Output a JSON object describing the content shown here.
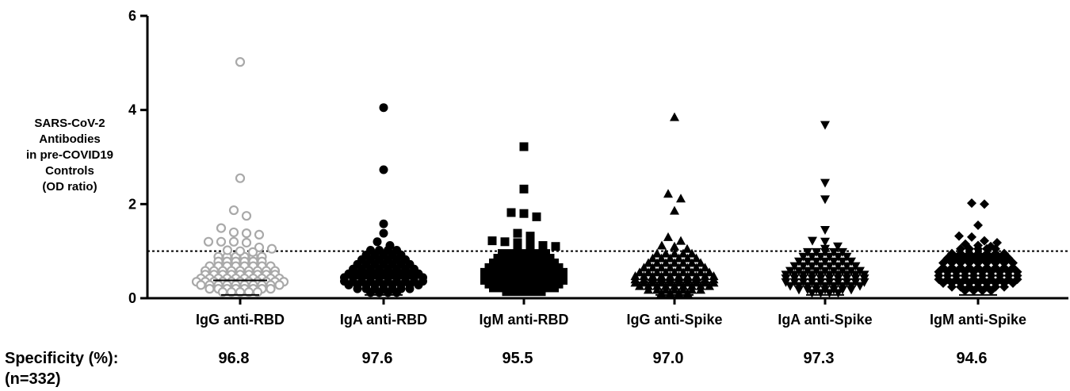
{
  "chart_data": {
    "type": "scatter",
    "ylabel_lines": [
      "SARS-CoV-2",
      "Antibodies",
      "in pre-COVID19",
      "Controls",
      "(OD ratio)"
    ],
    "ylim": [
      0,
      6
    ],
    "yticks": [
      "0",
      "2",
      "4",
      "6"
    ],
    "cutoff": 1,
    "categories": [
      "IgG anti-RBD",
      "IgA anti-RBD",
      "IgM anti-RBD",
      "IgG anti-Spike",
      "IgA anti-Spike",
      "IgM anti-Spike"
    ],
    "specificity_label": "Specificity (%):",
    "n_label": "(n=332)",
    "specificity_values": [
      "96.8",
      "97.6",
      "95.5",
      "97.0",
      "97.3",
      "94.6"
    ],
    "series": [
      {
        "marker": "circle-open",
        "color": "#a9a9a9",
        "median": 0.38,
        "outliers": [
          5.02,
          2.55,
          1.87,
          1.75,
          1.49,
          1.4,
          1.38,
          1.35,
          1.2,
          1.2,
          1.18,
          1.2,
          1.08,
          1.05,
          1.02,
          1.0,
          0.98
        ],
        "bands": [
          [
            0.88,
            28
          ],
          [
            0.78,
            32
          ],
          [
            0.68,
            40
          ],
          [
            0.58,
            44
          ],
          [
            0.5,
            48
          ],
          [
            0.42,
            52
          ],
          [
            0.35,
            56
          ],
          [
            0.28,
            52
          ],
          [
            0.2,
            42
          ],
          [
            0.13,
            22
          ]
        ]
      },
      {
        "marker": "circle",
        "color": "#000000",
        "median": 0.42,
        "outliers": [
          4.05,
          2.73,
          1.58,
          1.38,
          1.2,
          1.12
        ],
        "bands": [
          [
            1.02,
            18
          ],
          [
            0.92,
            24
          ],
          [
            0.82,
            30
          ],
          [
            0.72,
            36
          ],
          [
            0.62,
            42
          ],
          [
            0.52,
            46
          ],
          [
            0.44,
            50
          ],
          [
            0.36,
            52
          ],
          [
            0.28,
            46
          ],
          [
            0.2,
            36
          ],
          [
            0.12,
            20
          ]
        ]
      },
      {
        "marker": "square",
        "color": "#000000",
        "median": 0.45,
        "outliers": [
          3.22,
          2.32,
          1.82,
          1.8,
          1.73,
          1.38,
          1.32,
          1.22,
          1.2,
          1.18,
          1.15,
          1.12,
          1.1,
          1.05,
          1.05
        ],
        "bands": [
          [
            0.95,
            28
          ],
          [
            0.85,
            34
          ],
          [
            0.75,
            40
          ],
          [
            0.65,
            46
          ],
          [
            0.55,
            50
          ],
          [
            0.47,
            52
          ],
          [
            0.38,
            52
          ],
          [
            0.3,
            48
          ],
          [
            0.22,
            40
          ],
          [
            0.14,
            24
          ]
        ]
      },
      {
        "marker": "triangle-up",
        "color": "#000000",
        "median": 0.38,
        "outliers": [
          3.85,
          2.22,
          2.12,
          1.86,
          1.3,
          1.22,
          1.12,
          1.1,
          1.05
        ],
        "bands": [
          [
            0.95,
            24
          ],
          [
            0.85,
            30
          ],
          [
            0.75,
            36
          ],
          [
            0.65,
            42
          ],
          [
            0.55,
            46
          ],
          [
            0.47,
            50
          ],
          [
            0.4,
            52
          ],
          [
            0.33,
            52
          ],
          [
            0.26,
            46
          ],
          [
            0.18,
            36
          ],
          [
            0.11,
            20
          ]
        ]
      },
      {
        "marker": "triangle-down",
        "color": "#000000",
        "median": 0.4,
        "outliers": [
          3.68,
          2.45,
          2.1,
          1.45,
          1.22,
          1.2,
          1.1,
          1.05
        ],
        "bands": [
          [
            0.98,
            22
          ],
          [
            0.88,
            28
          ],
          [
            0.78,
            34
          ],
          [
            0.68,
            40
          ],
          [
            0.58,
            46
          ],
          [
            0.5,
            50
          ],
          [
            0.42,
            52
          ],
          [
            0.34,
            50
          ],
          [
            0.26,
            44
          ],
          [
            0.18,
            34
          ],
          [
            0.11,
            18
          ]
        ]
      },
      {
        "marker": "diamond",
        "color": "#000000",
        "median": 0.48,
        "outliers": [
          2.02,
          2.0,
          1.55,
          1.32,
          1.3,
          1.22,
          1.18,
          1.15,
          1.12,
          1.1
        ],
        "bands": [
          [
            1.05,
            26
          ],
          [
            0.95,
            34
          ],
          [
            0.85,
            40
          ],
          [
            0.75,
            44
          ],
          [
            0.65,
            48
          ],
          [
            0.56,
            52
          ],
          [
            0.48,
            52
          ],
          [
            0.4,
            50
          ],
          [
            0.32,
            44
          ],
          [
            0.24,
            34
          ],
          [
            0.16,
            20
          ]
        ]
      }
    ]
  }
}
